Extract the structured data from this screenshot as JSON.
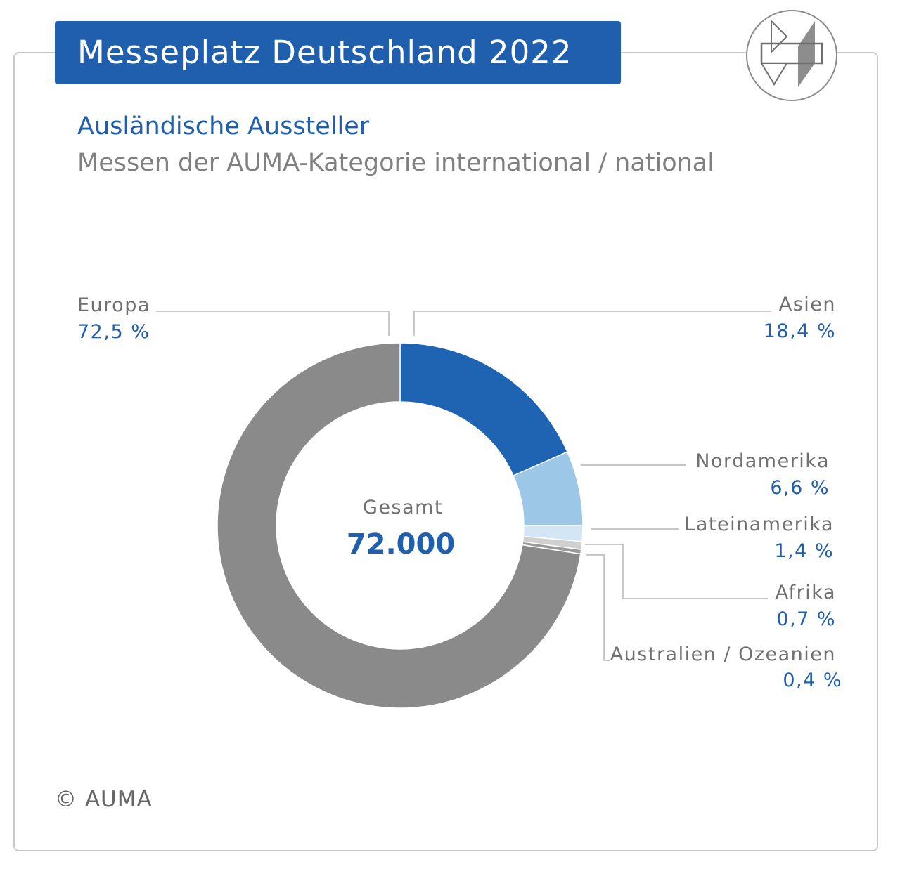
{
  "header": {
    "title": "Messeplatz Deutschland 2022",
    "subtitle": "Ausländische Aussteller",
    "subtitle2": "Messen der AUMA-Kategorie international / national"
  },
  "footer": {
    "copyright": "© AUMA"
  },
  "colors": {
    "brand_blue": "#1f5fae",
    "europe_gray": "#8a8a8a",
    "asia_blue": "#1e64b2",
    "north_america_light_blue": "#9cc7e6",
    "latin_america_pale_blue": "#d3e6f5",
    "africa_light_gray": "#cfcfcf",
    "oceania_gray": "#9a9a9a"
  },
  "chart_data": {
    "type": "pie",
    "variant": "donut",
    "center_label": "Gesamt",
    "center_value": "72.000",
    "slices": [
      {
        "name": "Asien",
        "value": 18.4,
        "label": "18,4 %",
        "color": "#1e64b2"
      },
      {
        "name": "Nordamerika",
        "value": 6.6,
        "label": "6,6 %",
        "color": "#9cc7e6"
      },
      {
        "name": "Lateinamerika",
        "value": 1.4,
        "label": "1,4 %",
        "color": "#d3e6f5"
      },
      {
        "name": "Afrika",
        "value": 0.7,
        "label": "0,7 %",
        "color": "#cfcfcf"
      },
      {
        "name": "Australien / Ozeanien",
        "value": 0.4,
        "label": "0,4 %",
        "color": "#9a9a9a"
      },
      {
        "name": "Europa",
        "value": 72.5,
        "label": "72,5 %",
        "color": "#8a8a8a"
      }
    ]
  }
}
